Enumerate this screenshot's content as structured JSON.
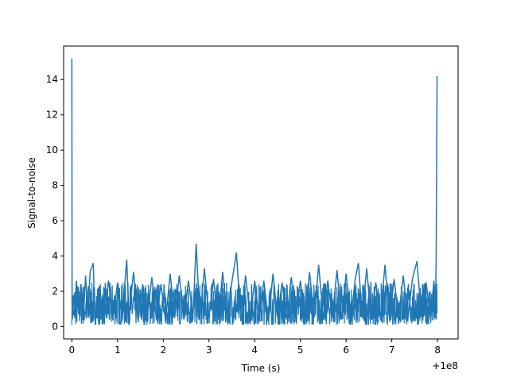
{
  "chart_data": {
    "type": "line",
    "title": "",
    "xlabel": "Time (s)",
    "ylabel": "Signal-to-noise",
    "x_offset_label": "+1e8",
    "xlim": [
      -0.18,
      8.45
    ],
    "ylim": [
      -0.7,
      15.9
    ],
    "xticks": [
      0,
      1,
      2,
      3,
      4,
      5,
      6,
      7,
      8
    ],
    "yticks": [
      0,
      2,
      4,
      6,
      8,
      10,
      12,
      14
    ],
    "grid": false,
    "legend": "none",
    "series": [
      {
        "color": "#1f77b4",
        "noise_band": {
          "low": 0.1,
          "high": 2.5,
          "typical": 1.0
        },
        "points": [
          [
            0.0,
            15.2
          ],
          [
            0.005,
            1.3
          ],
          [
            0.05,
            0.6
          ],
          [
            0.1,
            2.6
          ],
          [
            0.15,
            0.7
          ],
          [
            0.2,
            2.4
          ],
          [
            0.25,
            0.4
          ],
          [
            0.3,
            2.9
          ],
          [
            0.35,
            0.5
          ],
          [
            0.4,
            3.1
          ],
          [
            0.47,
            3.6
          ],
          [
            0.5,
            0.4
          ],
          [
            0.6,
            2.3
          ],
          [
            0.7,
            0.3
          ],
          [
            0.8,
            2.6
          ],
          [
            0.9,
            0.5
          ],
          [
            1.0,
            2.5
          ],
          [
            1.1,
            0.4
          ],
          [
            1.2,
            3.8
          ],
          [
            1.25,
            0.6
          ],
          [
            1.35,
            3.1
          ],
          [
            1.45,
            0.3
          ],
          [
            1.55,
            2.4
          ],
          [
            1.65,
            0.5
          ],
          [
            1.75,
            2.8
          ],
          [
            1.85,
            0.4
          ],
          [
            1.95,
            2.4
          ],
          [
            2.05,
            0.3
          ],
          [
            2.15,
            3.0
          ],
          [
            2.25,
            0.5
          ],
          [
            2.35,
            2.9
          ],
          [
            2.45,
            0.4
          ],
          [
            2.55,
            2.6
          ],
          [
            2.65,
            0.6
          ],
          [
            2.72,
            4.7
          ],
          [
            2.8,
            0.4
          ],
          [
            2.9,
            3.3
          ],
          [
            3.0,
            0.5
          ],
          [
            3.1,
            2.7
          ],
          [
            3.2,
            0.4
          ],
          [
            3.3,
            3.1
          ],
          [
            3.4,
            0.5
          ],
          [
            3.5,
            2.5
          ],
          [
            3.6,
            4.2
          ],
          [
            3.7,
            0.3
          ],
          [
            3.8,
            2.9
          ],
          [
            3.9,
            0.5
          ],
          [
            4.0,
            2.6
          ],
          [
            4.1,
            0.4
          ],
          [
            4.2,
            2.6
          ],
          [
            4.3,
            0.3
          ],
          [
            4.4,
            3.0
          ],
          [
            4.5,
            0.5
          ],
          [
            4.6,
            2.5
          ],
          [
            4.7,
            0.4
          ],
          [
            4.8,
            2.8
          ],
          [
            4.9,
            0.5
          ],
          [
            5.0,
            2.6
          ],
          [
            5.1,
            0.4
          ],
          [
            5.2,
            3.1
          ],
          [
            5.3,
            0.5
          ],
          [
            5.4,
            3.5
          ],
          [
            5.5,
            0.4
          ],
          [
            5.6,
            2.6
          ],
          [
            5.7,
            0.5
          ],
          [
            5.8,
            3.2
          ],
          [
            5.9,
            0.4
          ],
          [
            6.0,
            3.0
          ],
          [
            6.1,
            0.4
          ],
          [
            6.2,
            2.7
          ],
          [
            6.27,
            3.6
          ],
          [
            6.35,
            0.5
          ],
          [
            6.45,
            3.3
          ],
          [
            6.55,
            0.4
          ],
          [
            6.65,
            2.5
          ],
          [
            6.75,
            0.5
          ],
          [
            6.85,
            3.5
          ],
          [
            6.95,
            0.4
          ],
          [
            7.05,
            2.7
          ],
          [
            7.15,
            0.5
          ],
          [
            7.25,
            2.9
          ],
          [
            7.35,
            0.4
          ],
          [
            7.45,
            2.7
          ],
          [
            7.55,
            3.7
          ],
          [
            7.65,
            0.5
          ],
          [
            7.75,
            2.5
          ],
          [
            7.85,
            0.4
          ],
          [
            7.92,
            2.6
          ],
          [
            7.95,
            0.5
          ],
          [
            7.97,
            3.8
          ],
          [
            7.99,
            14.2
          ]
        ]
      }
    ]
  }
}
